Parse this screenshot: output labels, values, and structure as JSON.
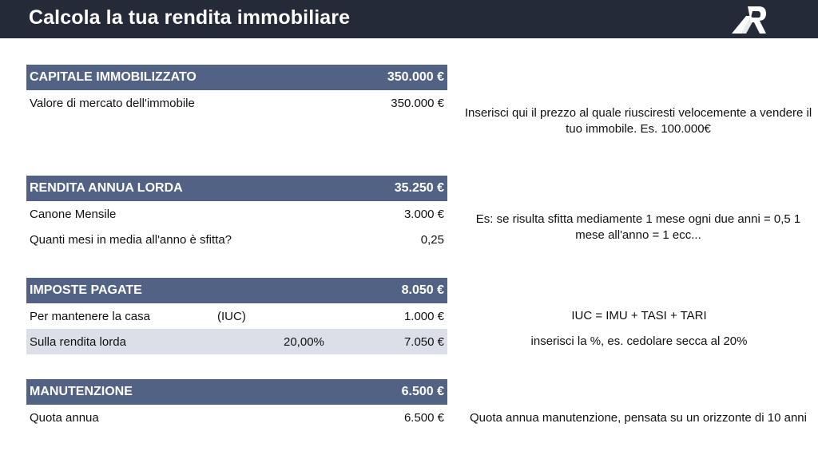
{
  "header": {
    "title": "Calcola la tua rendita immobiliare",
    "logo_icon": "building-r-logo-icon"
  },
  "colors": {
    "topbar": "#252a38",
    "section_header": "#526284",
    "shaded_row": "#dcdfe8"
  },
  "sections": {
    "capitale": {
      "title": "CAPITALE IMMOBILIZZATO",
      "total": "350.000 €",
      "rows": [
        {
          "label": "Valore di mercato dell'immobile",
          "value": "350.000 €"
        }
      ],
      "note": "Inserisci qui il prezzo al quale riusciresti velocemente a vendere il tuo immobile. Es. 100.000€"
    },
    "rendita": {
      "title": "RENDITA ANNUA LORDA",
      "total": "35.250 €",
      "rows": [
        {
          "label": "Canone Mensile",
          "value": "3.000 €"
        },
        {
          "label": "Quanti mesi in media all'anno è sfitta?",
          "value": "0,25"
        }
      ],
      "note": "Es: se risulta sfitta mediamente 1 mese ogni due anni = 0,5 1 mese all'anno = 1 ecc..."
    },
    "imposte": {
      "title": "IMPOSTE PAGATE",
      "total": "8.050 €",
      "rows": [
        {
          "label": "Per mantenere la casa",
          "mid": "(IUC)",
          "value": "1.000 €"
        },
        {
          "label": "Sulla rendita lorda",
          "mid": "20,00%",
          "value": "7.050 €"
        }
      ],
      "notes": [
        "IUC = IMU + TASI + TARI",
        "inserisci la %, es. cedolare secca al 20%"
      ]
    },
    "manutenzione": {
      "title": "MANUTENZIONE",
      "total": "6.500 €",
      "rows": [
        {
          "label": "Quota annua",
          "value": "6.500 €"
        }
      ],
      "note": "Quota annua manutenzione, pensata su un orizzonte di 10 anni"
    }
  }
}
